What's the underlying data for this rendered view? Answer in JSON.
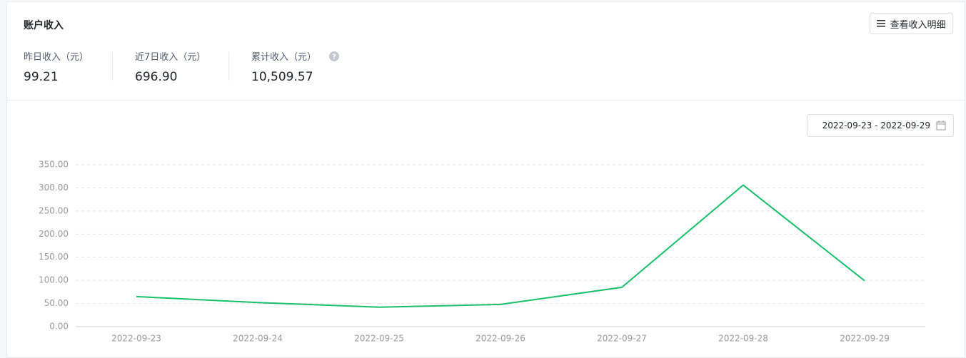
{
  "header": {
    "title": "账户收入",
    "button": "查看收入明细"
  },
  "stats": [
    {
      "label": "昨日收入（元）",
      "value": "99.21"
    },
    {
      "label": "近7日收入（元）",
      "value": "696.90"
    },
    {
      "label": "累计收入（元）",
      "value": "10,509.57"
    }
  ],
  "date_range": "2022-09-23 - 2022-09-29",
  "chart_data": {
    "type": "line",
    "categories": [
      "2022-09-23",
      "2022-09-24",
      "2022-09-25",
      "2022-09-26",
      "2022-09-27",
      "2022-09-28",
      "2022-09-29"
    ],
    "values": [
      65,
      52,
      42,
      48,
      85,
      306,
      99.21
    ],
    "color": "#19be6b",
    "ylim": [
      0,
      350
    ],
    "yticks": [
      {
        "value": 0,
        "label": "0.00"
      },
      {
        "value": 50,
        "label": "50.00"
      },
      {
        "value": 100,
        "label": "100.00"
      },
      {
        "value": 150,
        "label": "150.00"
      },
      {
        "value": 200,
        "label": "200.00"
      },
      {
        "value": 250,
        "label": "250.00"
      },
      {
        "value": 300,
        "label": "300.00"
      },
      {
        "value": 350,
        "label": "350.00"
      }
    ],
    "grid": true
  }
}
